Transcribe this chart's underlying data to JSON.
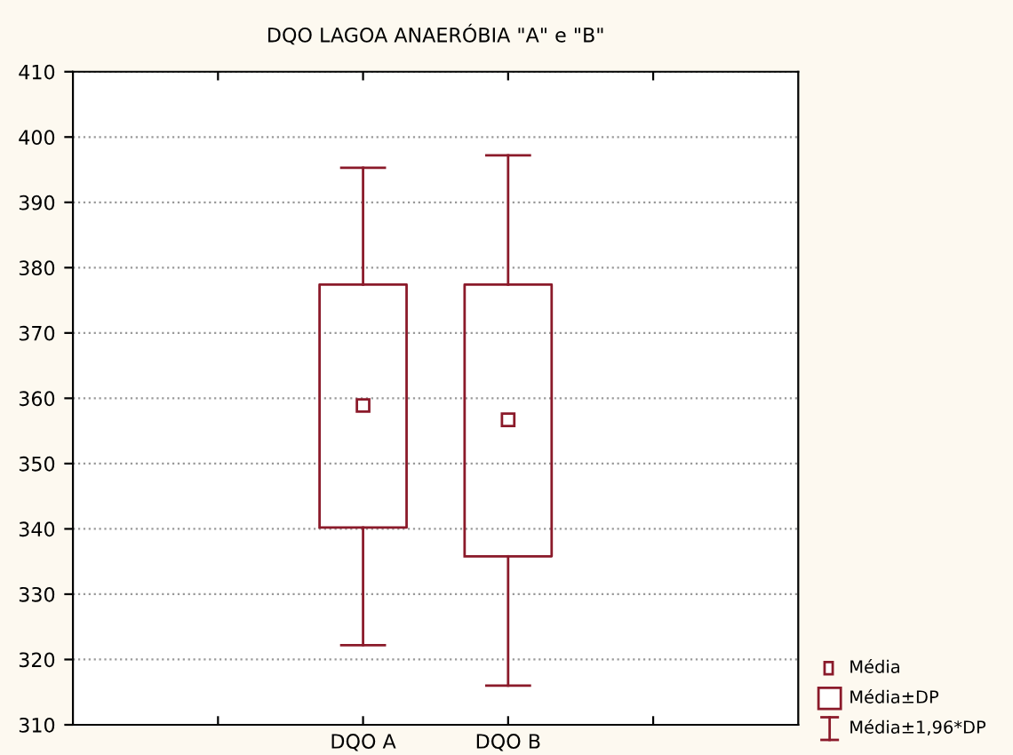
{
  "chart_data": {
    "type": "box",
    "title": "DQO LAGOA ANAERÓBIA \"A\" e \"B\"",
    "categories": [
      null,
      "DQO A",
      "DQO B",
      null
    ],
    "boxes": [
      null,
      {
        "low": 322.2,
        "q1": 340.2,
        "median": 358.9,
        "q3": 377.4,
        "high": 395.3
      },
      {
        "low": 316.0,
        "q1": 335.8,
        "median": 356.7,
        "q3": 377.4,
        "high": 397.2
      },
      null
    ],
    "color": "#8b1a2a",
    "ylim": [
      310,
      410
    ],
    "yticks": [
      310,
      320,
      330,
      340,
      350,
      360,
      370,
      380,
      390,
      400,
      410
    ],
    "grid": "y",
    "annotations": [
      "Média",
      "Média±DP",
      "Média±1,96*DP"
    ]
  }
}
